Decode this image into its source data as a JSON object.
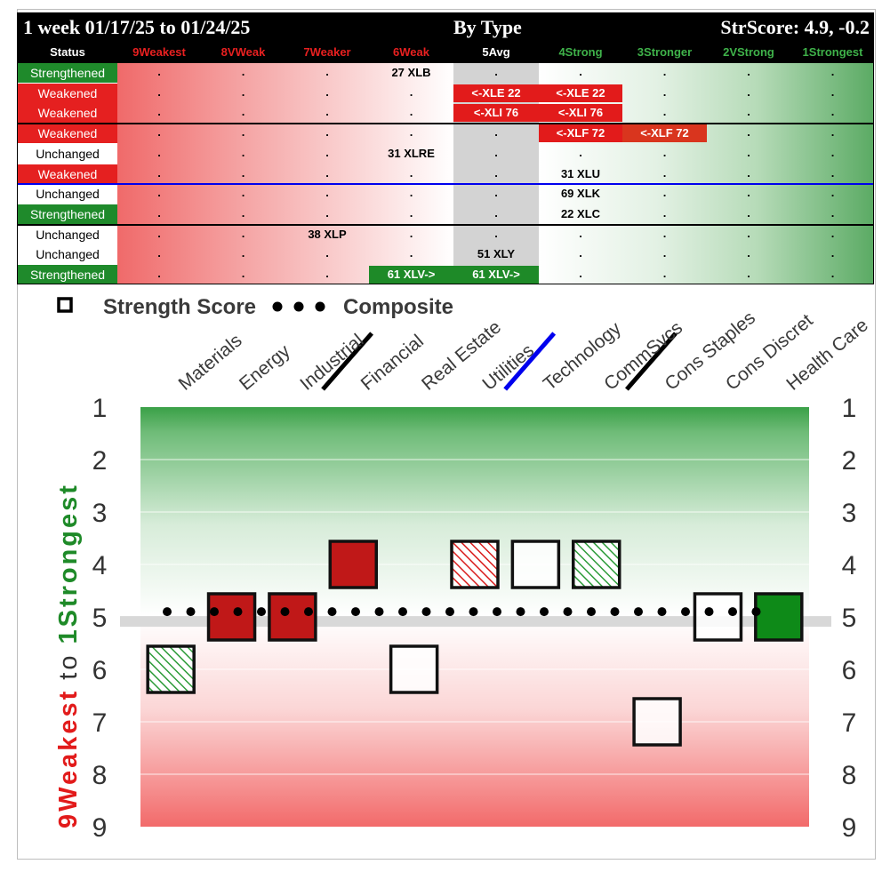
{
  "table": {
    "header": {
      "period": "1 week 01/17/25 to 01/24/25",
      "title": "By Type",
      "score": "StrScore: 4.9, -0.2"
    },
    "columns": [
      "Status",
      "9Weakest",
      "8VWeak",
      "7Weaker",
      "6Weak",
      "5Avg",
      "4Strong",
      "3Stronger",
      "2VStrong",
      "1Strongest"
    ],
    "column_colors": [
      "#ffffff",
      "#e82020",
      "#e82020",
      "#e82020",
      "#e82020",
      "#ffffff",
      "#3fb24a",
      "#3fb24a",
      "#3fb24a",
      "#3fb24a"
    ],
    "rows": [
      {
        "status": "Strengthened",
        "cells": [
          {
            "col": 4,
            "text": "27 XLB",
            "style": "plain"
          }
        ]
      },
      {
        "status": "Weakened",
        "cells": [
          {
            "col": 5,
            "text": "<-XLE 22",
            "style": "red"
          },
          {
            "col": 6,
            "text": "<-XLE 22",
            "style": "red"
          }
        ]
      },
      {
        "status": "Weakened",
        "cells": [
          {
            "col": 5,
            "text": "<-XLI 76",
            "style": "red"
          },
          {
            "col": 6,
            "text": "<-XLI 76",
            "style": "red"
          }
        ]
      },
      {
        "status": "Weakened",
        "cells": [
          {
            "col": 6,
            "text": "<-XLF 72",
            "style": "red"
          },
          {
            "col": 7,
            "text": "<-XLF 72",
            "style": "red2"
          }
        ]
      },
      {
        "status": "Unchanged",
        "cells": [
          {
            "col": 4,
            "text": "31 XLRE",
            "style": "plain"
          }
        ]
      },
      {
        "status": "Weakened",
        "cells": [
          {
            "col": 6,
            "text": "31 XLU",
            "style": "plain"
          }
        ]
      },
      {
        "status": "Unchanged",
        "cells": [
          {
            "col": 6,
            "text": "69 XLK",
            "style": "plain"
          }
        ]
      },
      {
        "status": "Strengthened",
        "cells": [
          {
            "col": 6,
            "text": "22 XLC",
            "style": "plain"
          }
        ]
      },
      {
        "status": "Unchanged",
        "cells": [
          {
            "col": 3,
            "text": "38 XLP",
            "style": "plain"
          }
        ]
      },
      {
        "status": "Unchanged",
        "cells": [
          {
            "col": 5,
            "text": "51 XLY",
            "style": "plain"
          }
        ]
      },
      {
        "status": "Strengthened",
        "cells": [
          {
            "col": 4,
            "text": "61 XLV->",
            "style": "green"
          },
          {
            "col": 5,
            "text": "61 XLV->",
            "style": "green"
          }
        ]
      }
    ],
    "dot_char": ".",
    "separators": [
      {
        "after_row": 2,
        "color": "#000000"
      },
      {
        "after_row": 5,
        "color": "#0000ee"
      },
      {
        "after_row": 7,
        "color": "#000000"
      }
    ]
  },
  "chart_data": {
    "type": "scatter",
    "legend": {
      "square_label": "Strength Score",
      "dots_label": "Composite"
    },
    "categories": [
      "Materials",
      "Energy",
      "Industrial",
      "Financial",
      "Real Estate",
      "Utilities",
      "Technology",
      "CommSvcs",
      "Cons Staples",
      "Cons Discret",
      "Health Care"
    ],
    "strength_score": [
      6,
      5,
      5,
      4,
      6,
      4,
      4,
      4,
      7,
      5,
      5
    ],
    "marker_fill": [
      "hatch-green",
      "red",
      "red",
      "red",
      "white",
      "hatch-red",
      "white",
      "hatch-green",
      "white",
      "white",
      "green"
    ],
    "composite": 4.9,
    "ylim": [
      1,
      9
    ],
    "y_ticks": [
      "1",
      "2",
      "3",
      "4",
      "5",
      "6",
      "7",
      "8",
      "9"
    ],
    "y_axis_label": {
      "weak_part": "9Weakest",
      "mid": "to",
      "strong_part": "1Strongest"
    },
    "group_dividers": [
      {
        "after_category": "Industrial",
        "color": "#000000"
      },
      {
        "after_category": "Utilities",
        "color": "#0000ee"
      },
      {
        "after_category": "CommSvcs",
        "color": "#000000"
      }
    ],
    "colors": {
      "strong": "#2e9c3a",
      "weak": "#e33333",
      "marker_red": "#c01818",
      "marker_green": "#0e8a18",
      "hatch_green": "#2e9c3a",
      "hatch_red": "#d91c1c"
    }
  }
}
